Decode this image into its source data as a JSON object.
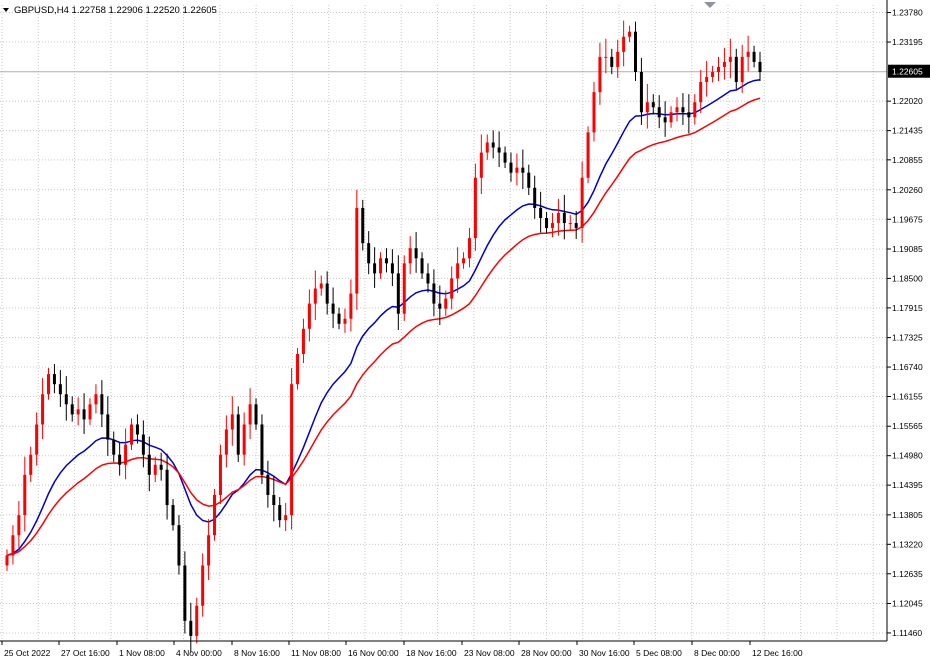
{
  "header": {
    "symbol_info": "GBPUSD,H4  1.22758 1.22906 1.22520 1.22605"
  },
  "colors": {
    "bull": "#ff0000",
    "bear": "#000000",
    "ma_fast": "#0000cd",
    "ma_slow": "#ff0000",
    "grid": "#c8c8c8",
    "price_line": "#a9b0b8",
    "price_badge_bg": "#000000",
    "price_badge_text": "#ffffff"
  },
  "chart_data": {
    "type": "candlestick",
    "title": "GBPUSD,H4",
    "ohlc_header": {
      "open": 1.22758,
      "high": 1.22906,
      "low": 1.2252,
      "close": 1.22605
    },
    "current_price": 1.22605,
    "y_ticks": [
      "1.23780",
      "1.23195",
      "1.22020",
      "1.21435",
      "1.20855",
      "1.20260",
      "1.19675",
      "1.19085",
      "1.18500",
      "1.17915",
      "1.17325",
      "1.16740",
      "1.16155",
      "1.15565",
      "1.14980",
      "1.14395",
      "1.13805",
      "1.13220",
      "1.12635",
      "1.12045",
      "1.11460"
    ],
    "x_ticks": [
      "25 Oct 2022",
      "27 Oct 16:00",
      "1 Nov 08:00",
      "4 Nov 00:00",
      "8 Nov 16:00",
      "11 Nov 08:00",
      "16 Nov 00:00",
      "18 Nov 16:00",
      "23 Nov 08:00",
      "28 Nov 00:00",
      "30 Nov 16:00",
      "5 Dec 08:00",
      "8 Dec 00:00",
      "12 Dec 16:00"
    ],
    "ylim": [
      1.113,
      1.2393
    ],
    "grid": true,
    "close_series": [
      1.13,
      1.134,
      1.138,
      1.146,
      1.15,
      1.156,
      1.162,
      1.166,
      1.164,
      1.162,
      1.16,
      1.158,
      1.159,
      1.157,
      1.16,
      1.162,
      1.158,
      1.153,
      1.15,
      1.148,
      1.152,
      1.156,
      1.154,
      1.15,
      1.146,
      1.148,
      1.147,
      1.14,
      1.136,
      1.128,
      1.117,
      1.114,
      1.12,
      1.128,
      1.134,
      1.142,
      1.15,
      1.155,
      1.158,
      1.15,
      1.156,
      1.16,
      1.156,
      1.146,
      1.142,
      1.14,
      1.137,
      1.138,
      1.164,
      1.17,
      1.175,
      1.18,
      1.183,
      1.184,
      1.18,
      1.178,
      1.176,
      1.177,
      1.182,
      1.199,
      1.192,
      1.188,
      1.186,
      1.189,
      1.188,
      1.186,
      1.178,
      1.188,
      1.191,
      1.189,
      1.186,
      1.184,
      1.18,
      1.179,
      1.181,
      1.185,
      1.188,
      1.189,
      1.193,
      1.205,
      1.21,
      1.212,
      1.211,
      1.21,
      1.208,
      1.206,
      1.207,
      1.206,
      1.203,
      1.199,
      1.197,
      1.195,
      1.196,
      1.198,
      1.196,
      1.196,
      1.195,
      1.205,
      1.214,
      1.222,
      1.229,
      1.229,
      1.227,
      1.23,
      1.233,
      1.234,
      1.226,
      1.218,
      1.22,
      1.219,
      1.217,
      1.216,
      1.218,
      1.219,
      1.218,
      1.217,
      1.22,
      1.224,
      1.225,
      1.226,
      1.227,
      1.228,
      1.229,
      1.224,
      1.229,
      1.23,
      1.228,
      1.226
    ]
  }
}
